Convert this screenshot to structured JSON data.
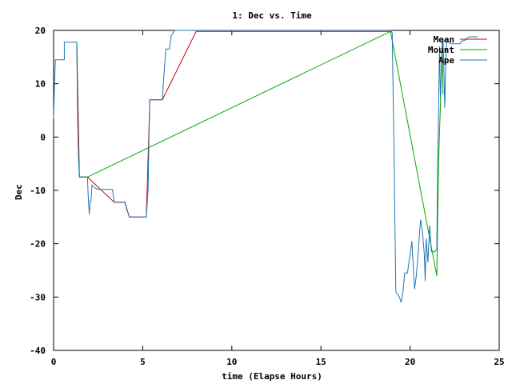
{
  "chart_data": {
    "type": "line",
    "title": "1: Dec vs. Time",
    "xlabel": "time (Elapse Hours)",
    "ylabel": "Dec",
    "xlim": [
      0,
      25
    ],
    "ylim": [
      -40,
      20
    ],
    "xticks": [
      0,
      5,
      10,
      15,
      20,
      25
    ],
    "yticks": [
      -40,
      -30,
      -20,
      -10,
      0,
      10,
      20
    ],
    "grid": false,
    "legend_position": "top-right",
    "series": [
      {
        "name": "Mean",
        "color": "#cc0000",
        "points": [
          [
            1.3,
            17.8
          ],
          [
            1.45,
            -7.5
          ],
          [
            1.9,
            -7.5
          ],
          [
            3.4,
            -12.2
          ],
          [
            4.0,
            -12.2
          ],
          [
            4.25,
            -15.0
          ],
          [
            5.2,
            -15.0
          ],
          [
            5.4,
            7.0
          ],
          [
            6.1,
            7.0
          ],
          [
            8.0,
            19.8
          ],
          [
            18.9,
            19.8
          ]
        ]
      },
      {
        "name": "Mount",
        "color": "#00aa00",
        "points": [
          [
            1.3,
            17.8
          ],
          [
            1.35,
            3.5
          ],
          [
            1.4,
            -4.0
          ],
          [
            1.45,
            -7.5
          ],
          [
            1.9,
            -7.5
          ],
          [
            18.9,
            19.8
          ],
          [
            21.5,
            -26.0
          ],
          [
            21.6,
            -5.0
          ],
          [
            21.7,
            6.0
          ],
          [
            21.8,
            18.0
          ],
          [
            21.85,
            8.0
          ]
        ]
      },
      {
        "name": "Ape",
        "color": "#1f77b4",
        "points": [
          [
            0,
            3.5
          ],
          [
            0.05,
            10
          ],
          [
            0.1,
            14.5
          ],
          [
            0.6,
            14.5
          ],
          [
            0.6,
            17.8
          ],
          [
            1.2,
            17.8
          ],
          [
            1.3,
            17.8
          ],
          [
            1.35,
            3.5
          ],
          [
            1.4,
            -4.0
          ],
          [
            1.45,
            -7.5
          ],
          [
            1.9,
            -7.5
          ],
          [
            1.95,
            -11.5
          ],
          [
            2.0,
            -14.5
          ],
          [
            2.05,
            -12.0
          ],
          [
            2.1,
            -12.0
          ],
          [
            2.15,
            -9.0
          ],
          [
            2.3,
            -9.5
          ],
          [
            2.5,
            -9.8
          ],
          [
            3.3,
            -9.8
          ],
          [
            3.4,
            -12.2
          ],
          [
            4.0,
            -12.2
          ],
          [
            4.1,
            -13.5
          ],
          [
            4.25,
            -15.0
          ],
          [
            5.2,
            -15.0
          ],
          [
            5.3,
            -10.0
          ],
          [
            5.35,
            0.0
          ],
          [
            5.4,
            7.0
          ],
          [
            6.1,
            7.0
          ],
          [
            6.2,
            12.0
          ],
          [
            6.3,
            16.5
          ],
          [
            6.5,
            16.5
          ],
          [
            6.6,
            19.0
          ],
          [
            6.8,
            20.0
          ],
          [
            18.9,
            20.0
          ],
          [
            19.0,
            19.5
          ],
          [
            19.05,
            8.0
          ],
          [
            19.1,
            -2.0
          ],
          [
            19.15,
            -17.0
          ],
          [
            19.2,
            -29.0
          ],
          [
            19.3,
            -29.5
          ],
          [
            19.4,
            -30.0
          ],
          [
            19.5,
            -31.0
          ],
          [
            19.6,
            -29.0
          ],
          [
            19.7,
            -25.5
          ],
          [
            19.85,
            -25.5
          ],
          [
            20.0,
            -22.0
          ],
          [
            20.1,
            -19.5
          ],
          [
            20.25,
            -28.5
          ],
          [
            20.35,
            -26.0
          ],
          [
            20.45,
            -22.0
          ],
          [
            20.55,
            -17.0
          ],
          [
            20.6,
            -15.5
          ],
          [
            20.7,
            -18.0
          ],
          [
            20.8,
            -22.0
          ],
          [
            20.85,
            -27.0
          ],
          [
            20.9,
            -19.0
          ],
          [
            21.0,
            -23.5
          ],
          [
            21.1,
            -16.5
          ],
          [
            21.2,
            -21.5
          ],
          [
            21.4,
            -21.5
          ],
          [
            21.5,
            -21.0
          ],
          [
            21.55,
            -5.0
          ],
          [
            21.6,
            5.0
          ],
          [
            21.65,
            17.0
          ],
          [
            21.7,
            7.5
          ],
          [
            21.8,
            15.0
          ],
          [
            21.85,
            18.5
          ],
          [
            21.9,
            12.0
          ],
          [
            21.95,
            5.5
          ],
          [
            22.0,
            14.0
          ],
          [
            22.05,
            18.0
          ],
          [
            22.3,
            17.5
          ],
          [
            22.8,
            17.5
          ],
          [
            22.9,
            18.0
          ],
          [
            23.1,
            18.2
          ],
          [
            23.3,
            18.8
          ],
          [
            23.8,
            18.8
          ]
        ]
      }
    ]
  }
}
